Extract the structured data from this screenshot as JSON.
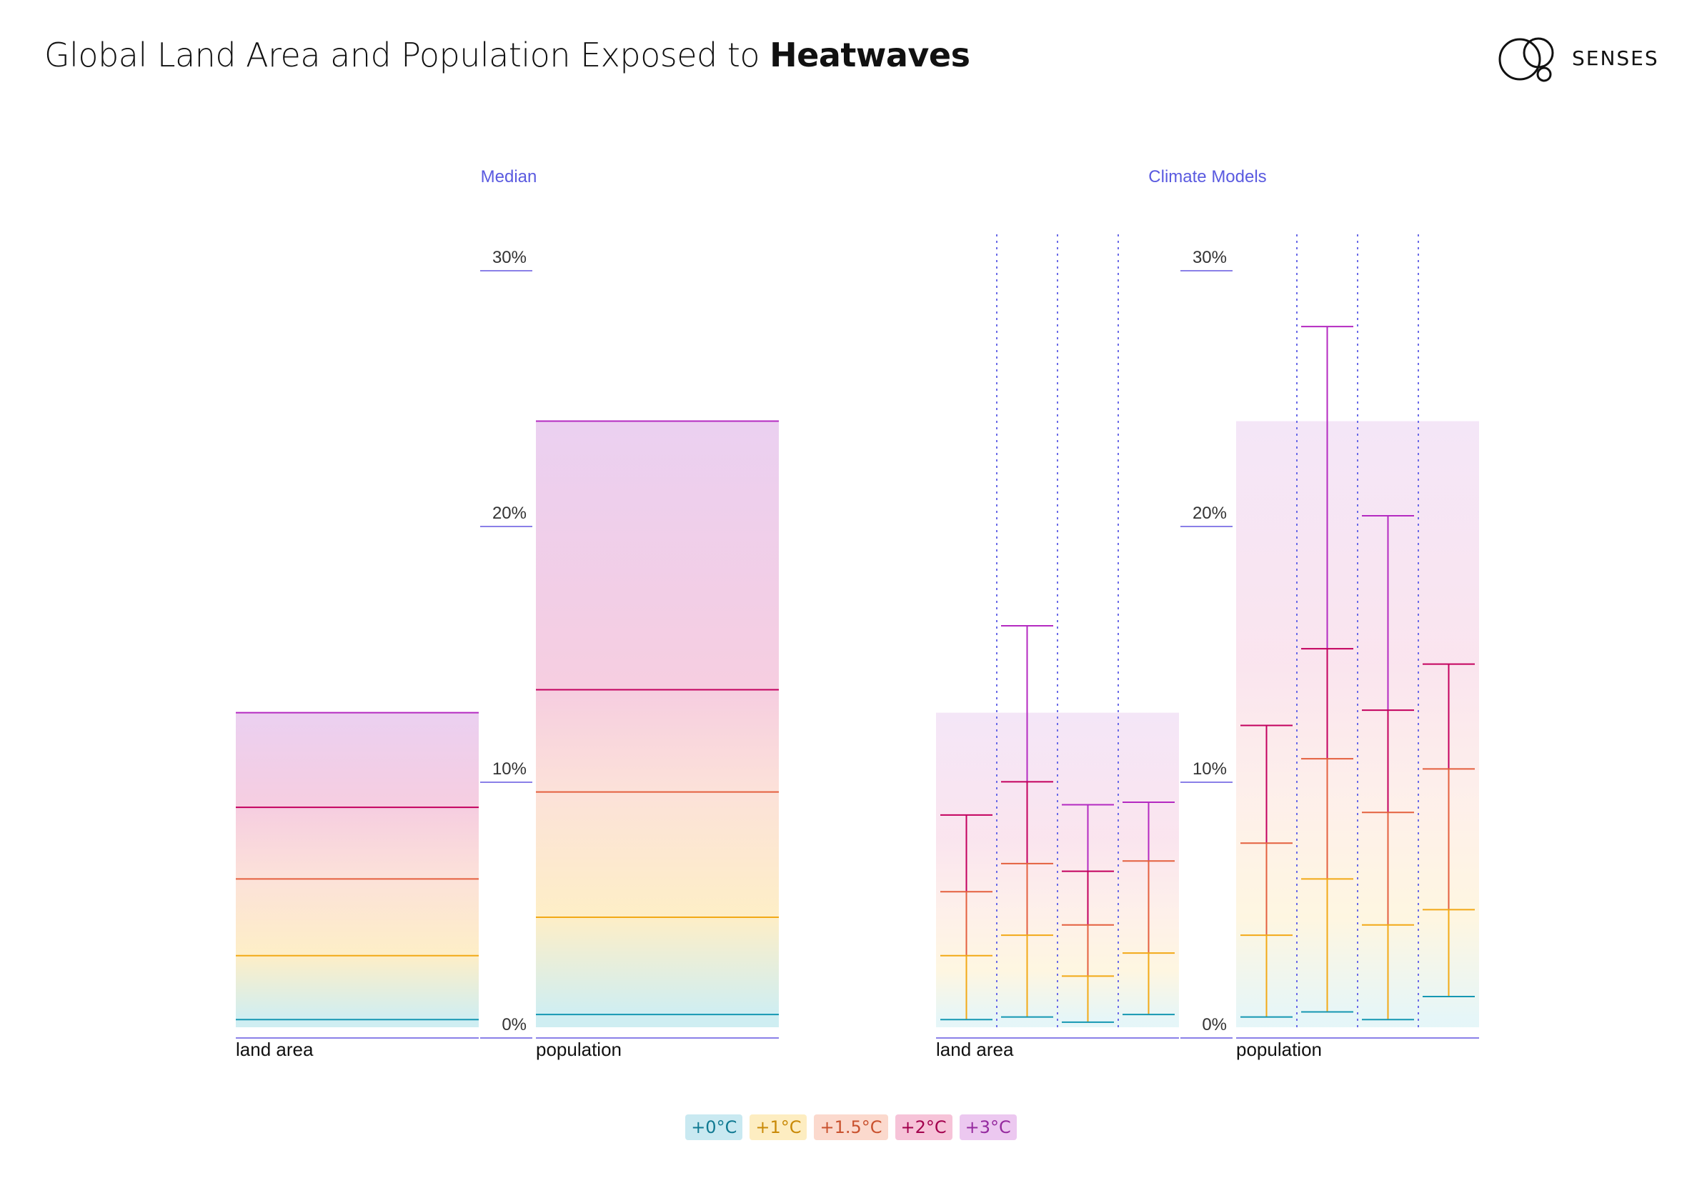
{
  "title": {
    "prefix": "Global Land Area and Population Exposed to ",
    "bold": "Heatwaves"
  },
  "logo": {
    "text": "SENSES",
    "icon": "senses-circles-icon"
  },
  "colors": {
    "+0°C": "#1597b2",
    "+1°C": "#f2a917",
    "+1.5°C": "#e4603f",
    "+2°C": "#c3005e",
    "+3°C": "#b42ac1",
    "axis": "#8a80e8",
    "grid_dotted": "#6b6be8",
    "panel_label": "#5a5ae0"
  },
  "chart_data": [
    {
      "type": "bar",
      "panel_title": "Median",
      "ylim": [
        0,
        30
      ],
      "ticks": [
        "0%",
        "10%",
        "20%",
        "30%"
      ],
      "categories": [
        "land area",
        "population"
      ],
      "series": [
        {
          "name": "+0°C",
          "values": [
            0.3,
            0.5
          ]
        },
        {
          "name": "+1°C",
          "values": [
            2.8,
            4.3
          ]
        },
        {
          "name": "+1.5°C",
          "values": [
            5.8,
            9.2
          ]
        },
        {
          "name": "+2°C",
          "values": [
            8.6,
            13.2
          ]
        },
        {
          "name": "+3°C",
          "values": [
            12.3,
            23.7
          ]
        }
      ]
    },
    {
      "type": "range",
      "panel_title": "Climate Models",
      "ylim": [
        0,
        30
      ],
      "ticks": [
        "0%",
        "10%",
        "20%",
        "30%"
      ],
      "categories": [
        "land area",
        "population"
      ],
      "median_max": [
        12.3,
        23.7
      ],
      "models": [
        [
          {
            "+0°C": 0.3,
            "+1°C": 2.8,
            "+1.5°C": 5.3,
            "+2°C": 8.3
          },
          {
            "+0°C": 0.4,
            "+1°C": 3.6,
            "+1.5°C": 6.4,
            "+2°C": 9.6,
            "+3°C": 15.7
          },
          {
            "+0°C": 0.2,
            "+1°C": 2.0,
            "+1.5°C": 4.0,
            "+2°C": 6.1,
            "+3°C": 8.7
          },
          {
            "+0°C": 0.5,
            "+1°C": 2.9,
            "+1.5°C": 6.5,
            "+3°C": 8.8
          }
        ],
        [
          {
            "+0°C": 0.4,
            "+1°C": 3.6,
            "+1.5°C": 7.2,
            "+2°C": 11.8
          },
          {
            "+0°C": 0.6,
            "+1°C": 5.8,
            "+1.5°C": 10.5,
            "+2°C": 14.8,
            "+3°C": 27.4
          },
          {
            "+0°C": 0.3,
            "+1°C": 4.0,
            "+1.5°C": 8.4,
            "+2°C": 12.4,
            "+3°C": 20.0
          },
          {
            "+0°C": 1.2,
            "+1°C": 4.6,
            "+1.5°C": 10.1,
            "+2°C": 14.2
          }
        ]
      ]
    }
  ],
  "legend": [
    "+0°C",
    "+1°C",
    "+1.5°C",
    "+2°C",
    "+3°C"
  ]
}
